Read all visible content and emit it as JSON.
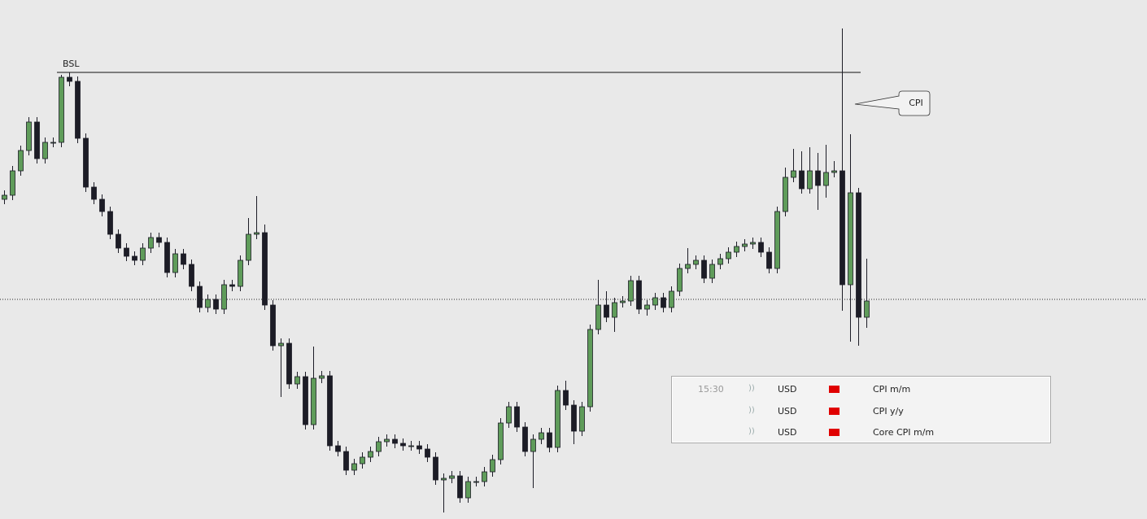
{
  "chart_data": {
    "type": "candlestick",
    "ylim": [
      0,
      638
    ],
    "up_color": "#5f9c5a",
    "down_color": "#1c1c26",
    "open": [
      393,
      398,
      428,
      453,
      488,
      443,
      463,
      463,
      543,
      538,
      468,
      408,
      393,
      378,
      350,
      333,
      323,
      318,
      333,
      346,
      340,
      303,
      326,
      313,
      286,
      260,
      270,
      258,
      288,
      286,
      318,
      350,
      352,
      263,
      213,
      216,
      166,
      175,
      116,
      173,
      176,
      90,
      83,
      60,
      68,
      76,
      83,
      95,
      98,
      93,
      90,
      90,
      86,
      76,
      48,
      50,
      53,
      26,
      46,
      46,
      58,
      73,
      118,
      138,
      113,
      83,
      98,
      106,
      88,
      158,
      140,
      108,
      138,
      233,
      263,
      248,
      266,
      268,
      293,
      258,
      263,
      272,
      260,
      280,
      308,
      313,
      318,
      296,
      313,
      320,
      328,
      335,
      338,
      340,
      328,
      308,
      378,
      420,
      428,
      406,
      428,
      410,
      426,
      428,
      288,
      401,
      248
    ],
    "high": [
      404,
      434,
      459,
      494,
      494,
      469,
      469,
      546,
      549,
      544,
      474,
      414,
      399,
      384,
      356,
      339,
      329,
      339,
      352,
      352,
      346,
      332,
      332,
      319,
      292,
      276,
      276,
      294,
      294,
      324,
      370,
      397,
      362,
      269,
      222,
      222,
      181,
      181,
      212,
      182,
      182,
      96,
      89,
      74,
      82,
      89,
      101,
      104,
      104,
      99,
      96,
      96,
      92,
      82,
      56,
      59,
      59,
      52,
      52,
      64,
      79,
      124,
      144,
      144,
      119,
      104,
      112,
      112,
      164,
      170,
      146,
      144,
      239,
      294,
      280,
      272,
      274,
      299,
      299,
      269,
      278,
      278,
      286,
      314,
      333,
      324,
      324,
      319,
      326,
      334,
      341,
      344,
      346,
      346,
      334,
      384,
      432,
      455,
      452,
      457,
      450,
      460,
      440,
      603,
      473,
      407,
      320
    ],
    "low": [
      387,
      392,
      422,
      447,
      437,
      437,
      457,
      457,
      532,
      462,
      402,
      387,
      372,
      344,
      327,
      317,
      312,
      312,
      327,
      334,
      297,
      297,
      307,
      280,
      254,
      254,
      252,
      252,
      280,
      280,
      312,
      344,
      257,
      207,
      150,
      160,
      160,
      110,
      110,
      167,
      84,
      77,
      54,
      54,
      62,
      70,
      77,
      89,
      87,
      84,
      84,
      80,
      70,
      42,
      8,
      44,
      20,
      20,
      40,
      40,
      52,
      67,
      112,
      107,
      77,
      38,
      92,
      82,
      82,
      134,
      92,
      102,
      132,
      227,
      242,
      230,
      260,
      262,
      252,
      250,
      257,
      254,
      254,
      274,
      302,
      307,
      290,
      290,
      307,
      314,
      322,
      329,
      332,
      322,
      302,
      302,
      372,
      414,
      400,
      400,
      380,
      395,
      420,
      256,
      218,
      213,
      235
    ],
    "close": [
      398,
      428,
      453,
      488,
      443,
      463,
      463,
      543,
      538,
      468,
      408,
      393,
      378,
      350,
      333,
      323,
      318,
      333,
      346,
      340,
      303,
      326,
      313,
      286,
      260,
      270,
      258,
      288,
      286,
      318,
      350,
      352,
      263,
      213,
      216,
      166,
      175,
      116,
      173,
      176,
      90,
      83,
      60,
      68,
      76,
      83,
      95,
      98,
      93,
      90,
      90,
      86,
      76,
      48,
      50,
      53,
      26,
      46,
      46,
      58,
      73,
      118,
      138,
      113,
      83,
      98,
      106,
      88,
      158,
      140,
      108,
      138,
      233,
      263,
      248,
      266,
      268,
      293,
      258,
      263,
      272,
      260,
      280,
      308,
      313,
      318,
      296,
      313,
      320,
      328,
      335,
      338,
      340,
      328,
      308,
      378,
      420,
      428,
      406,
      428,
      410,
      426,
      428,
      288,
      401,
      248,
      268
    ],
    "levels": [
      {
        "label": "BSL",
        "value": 549
      }
    ],
    "price_line": 270,
    "callout": "CPI"
  },
  "events": {
    "rows": [
      {
        "time": "15:30",
        "currency": "USD",
        "event": "CPI m/m"
      },
      {
        "currency": "USD",
        "event": "CPI y/y"
      },
      {
        "currency": "USD",
        "event": "Core CPI m/m"
      }
    ]
  }
}
